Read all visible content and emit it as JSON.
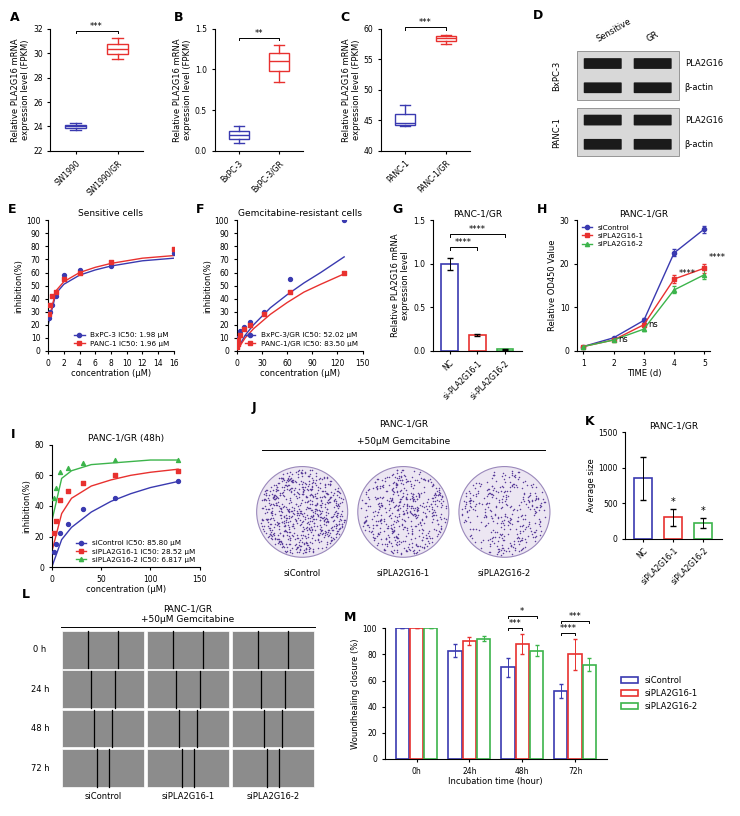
{
  "chart_data": [
    {
      "panel": "A",
      "type": "box",
      "y_label": "Relative PLA2G16 mRNA\nexpression level (FPKM)",
      "categories": [
        "SW1990",
        "SW1990/GR"
      ],
      "colors": [
        "#3a3ab0",
        "#e8312f"
      ],
      "values": [
        [
          23.7,
          24.0,
          24.3
        ],
        [
          29.5,
          30.3,
          31.2
        ]
      ],
      "ylim": [
        22,
        32
      ],
      "yticks": [
        22,
        24,
        26,
        28,
        30,
        32
      ],
      "significance": [
        {
          "text": "***",
          "between": [
            "SW1990",
            "SW1990/GR"
          ]
        }
      ]
    },
    {
      "panel": "B",
      "type": "box",
      "y_label": "Relative PLA2G16 mRNA\nexpression level (FPKM)",
      "categories": [
        "BxPC-3",
        "BxPC-3/GR"
      ],
      "colors": [
        "#3a3ab0",
        "#e8312f"
      ],
      "values": [
        [
          0.1,
          0.2,
          0.3
        ],
        [
          0.85,
          1.1,
          1.3
        ]
      ],
      "ylim": [
        0,
        1.5
      ],
      "yticks": [
        {
          "value": 0,
          "label": "0.0"
        },
        0.5,
        {
          "value": 1,
          "label": "1.0"
        },
        1.5
      ],
      "significance": [
        {
          "text": "**",
          "between": [
            "BxPC-3",
            "BxPC-3/GR"
          ]
        }
      ]
    },
    {
      "panel": "C",
      "type": "box",
      "y_label": "Relative PLA2G16 mRNA\nexpression level (FPKM)",
      "categories": [
        "PANC-1",
        "PANC-1/GR"
      ],
      "colors": [
        "#3a3ab0",
        "#e8312f"
      ],
      "values": [
        [
          44,
          44.5,
          47.5
        ],
        [
          57.5,
          58.5,
          59
        ]
      ],
      "ylim": [
        40,
        60
      ],
      "yticks": [
        40,
        45,
        50,
        55,
        60
      ],
      "significance": [
        {
          "text": "***",
          "between": [
            "PANC-1",
            "PANC-1/GR"
          ]
        }
      ]
    },
    {
      "panel": "E",
      "type": "curve",
      "title": "Sensitive cells",
      "x_label": "concentration (μM)",
      "y_label": "inhibition(%)",
      "xlim": [
        0,
        16
      ],
      "xticks": [
        0,
        2,
        4,
        6,
        8,
        10,
        12,
        14,
        16
      ],
      "ylim": [
        0,
        100
      ],
      "yticks": [
        0,
        10,
        20,
        30,
        40,
        50,
        60,
        70,
        80,
        90,
        100
      ],
      "legend": "lower right",
      "series": [
        {
          "name": "BxPC-3 IC50: 1.98 μM",
          "color": "#3a3ab0",
          "marker": "o",
          "x": [
            0.125,
            0.25,
            0.5,
            1,
            2,
            4,
            8,
            16
          ],
          "values": [
            25,
            30,
            35,
            42,
            58,
            62,
            65,
            75
          ],
          "fit_x": [
            0,
            1,
            2,
            4,
            6,
            8,
            10,
            12,
            14,
            16
          ],
          "fit_values": [
            20,
            44,
            51,
            58,
            62,
            65,
            67,
            69,
            70,
            71
          ]
        },
        {
          "name": "PANC-1 IC50: 1.96 μM",
          "color": "#e8312f",
          "marker": "s",
          "x": [
            0.125,
            0.25,
            0.5,
            1,
            2,
            4,
            8,
            16
          ],
          "values": [
            28,
            35,
            42,
            45,
            55,
            60,
            68,
            78
          ],
          "fit_x": [
            0,
            1,
            2,
            4,
            6,
            8,
            10,
            12,
            14,
            16
          ],
          "fit_values": [
            22,
            46,
            53,
            60,
            64,
            67,
            69,
            71,
            72,
            73
          ]
        }
      ]
    },
    {
      "panel": "F",
      "type": "curve",
      "title": "Gemcitabine-resistant cells",
      "x_label": "concentration (μM)",
      "y_label": "inhibition(%)",
      "xlim": [
        0,
        150
      ],
      "xticks": [
        0,
        30,
        60,
        90,
        120,
        150
      ],
      "ylim": [
        0,
        100
      ],
      "yticks": [
        0,
        10,
        20,
        30,
        40,
        50,
        60,
        70,
        80,
        90,
        100
      ],
      "legend": "lower right",
      "series": [
        {
          "name": "BxPC-3/GR IC50: 52.02 μM",
          "color": "#3a3ab0",
          "marker": "o",
          "x": [
            0.5,
            1,
            2,
            4,
            8,
            16,
            32,
            64,
            128
          ],
          "values": [
            5,
            8,
            10,
            15,
            18,
            22,
            30,
            55,
            100
          ],
          "fit_x": [
            0,
            10,
            20,
            40,
            60,
            80,
            100,
            128
          ],
          "fit_values": [
            0,
            12,
            20,
            33,
            43,
            52,
            60,
            72
          ]
        },
        {
          "name": "PANC-1/GR IC50: 83.50 μM",
          "color": "#e8312f",
          "marker": "s",
          "x": [
            0.5,
            1,
            2,
            4,
            8,
            16,
            32,
            64,
            128
          ],
          "values": [
            3,
            5,
            8,
            12,
            17,
            20,
            28,
            45,
            60
          ],
          "fit_x": [
            0,
            10,
            20,
            40,
            60,
            80,
            100,
            128
          ],
          "fit_values": [
            0,
            10,
            17,
            28,
            37,
            45,
            51,
            59
          ]
        }
      ]
    },
    {
      "panel": "G",
      "type": "bar",
      "title": "PANC-1/GR",
      "y_label": "Relative PLA2G16 mRNA\nexpression level",
      "categories": [
        "NC",
        "si-PLA2G16-1",
        "si-PLA2G16-2"
      ],
      "values": [
        1.0,
        0.18,
        0.02
      ],
      "errors": [
        0.07,
        0.01,
        0.005
      ],
      "colors": [
        "#3a3ab0",
        "#e8312f",
        "#3cb44b"
      ],
      "ylim": [
        0,
        1.5
      ],
      "yticks": [
        {
          "value": 0,
          "label": "0.0"
        },
        0.5,
        {
          "value": 1,
          "label": "1.0"
        },
        1.5
      ],
      "significance": [
        {
          "text": "****",
          "between": [
            "NC",
            "si-PLA2G16-1"
          ]
        },
        {
          "text": "****",
          "between": [
            "NC",
            "si-PLA2G16-2"
          ]
        }
      ]
    },
    {
      "panel": "H",
      "type": "line",
      "title": "PANC-1/GR",
      "x_label": "TIME (d)",
      "y_label": "Relative OD450 Value",
      "x": [
        1,
        2,
        3,
        4,
        5
      ],
      "xlim": [
        0.8,
        5.2
      ],
      "xticks": [
        1,
        2,
        3,
        4,
        5
      ],
      "ylim": [
        0,
        30
      ],
      "yticks": [
        0,
        10,
        20,
        30
      ],
      "legend": "upper left",
      "series": [
        {
          "name": "siControl",
          "color": "#3a3ab0",
          "marker": "o",
          "values": [
            1,
            3,
            7,
            22.5,
            28
          ],
          "errors": [
            0.1,
            0.3,
            0.5,
            0.8,
            0.8
          ]
        },
        {
          "name": "siPLA2G16-1",
          "color": "#e8312f",
          "marker": "s",
          "values": [
            1,
            2.5,
            6,
            16.5,
            19
          ],
          "errors": [
            0.1,
            0.2,
            0.4,
            1,
            1
          ]
        },
        {
          "name": "siPLA2G16-2",
          "color": "#3cb44b",
          "marker": "^",
          "values": [
            1,
            2.5,
            5,
            14,
            17.5
          ],
          "errors": [
            0.1,
            0.2,
            0.4,
            0.8,
            1
          ]
        }
      ],
      "annotations": [
        {
          "text": "ns",
          "x": 2
        },
        {
          "text": "ns",
          "x": 3
        },
        {
          "text": "****",
          "x": 4
        },
        {
          "text": "****",
          "x": 5
        }
      ]
    },
    {
      "panel": "I",
      "type": "curve",
      "title": "PANC-1/GR (48h)",
      "x_label": "concentration (μM)",
      "y_label": "inhibition(%)",
      "xlim": [
        0,
        150
      ],
      "xticks": [
        0,
        50,
        100,
        150
      ],
      "ylim": [
        0,
        80
      ],
      "yticks": [
        0,
        20,
        40,
        60,
        80
      ],
      "legend": "lower right",
      "series": [
        {
          "name": "siControl IC50: 85.80 μM",
          "color": "#3a3ab0",
          "marker": "o",
          "x": [
            2,
            4,
            8,
            16,
            32,
            64,
            128
          ],
          "values": [
            10,
            15,
            22,
            28,
            38,
            45,
            56
          ],
          "fit_x": [
            0,
            10,
            20,
            40,
            60,
            80,
            100,
            128
          ],
          "fit_values": [
            0,
            18,
            26,
            36,
            43,
            48,
            52,
            56
          ]
        },
        {
          "name": "siPLA2G16-1 IC50: 28.52 μM",
          "color": "#e8312f",
          "marker": "s",
          "x": [
            2,
            4,
            8,
            16,
            32,
            64,
            128
          ],
          "values": [
            22,
            30,
            44,
            50,
            55,
            60,
            63
          ],
          "fit_x": [
            0,
            10,
            20,
            40,
            60,
            80,
            100,
            128
          ],
          "fit_values": [
            10,
            35,
            45,
            53,
            57,
            60,
            62,
            64
          ]
        },
        {
          "name": "siPLA2G16-2 IC50: 6.817 μM",
          "color": "#3cb44b",
          "marker": "^",
          "x": [
            2,
            4,
            8,
            16,
            32,
            64,
            128
          ],
          "values": [
            45,
            52,
            62,
            65,
            68,
            70,
            70
          ],
          "fit_x": [
            0,
            10,
            20,
            40,
            60,
            80,
            100,
            128
          ],
          "fit_values": [
            30,
            58,
            63,
            67,
            68,
            69,
            70,
            70
          ]
        }
      ]
    },
    {
      "panel": "K",
      "type": "bar",
      "title": "PANC-1/GR",
      "y_label": "Average size",
      "categories": [
        "NC",
        "siPLA2G16-1",
        "siPLA2G16-2"
      ],
      "values": [
        850,
        300,
        220
      ],
      "errors": [
        300,
        120,
        70
      ],
      "colors": [
        "#3a3ab0",
        "#e8312f",
        "#3cb44b"
      ],
      "ylim": [
        0,
        1500
      ],
      "yticks": [
        0,
        500,
        1000,
        1500
      ],
      "significance": [
        {
          "text": "*",
          "category": "siPLA2G16-1"
        },
        {
          "text": "*",
          "category": "siPLA2G16-2"
        }
      ]
    },
    {
      "panel": "M",
      "type": "grouped_bar",
      "x_label": "Incubation time (hour)",
      "y_label": "Woundhealing closure (%)",
      "categories": [
        "0h",
        "24h",
        "48h",
        "72h"
      ],
      "ylim": [
        0,
        100
      ],
      "yticks": [
        0,
        20,
        40,
        60,
        80,
        100
      ],
      "legend": "right",
      "series": [
        {
          "name": "siControl",
          "color": "#3a3ab0",
          "values": [
            100,
            83,
            70,
            52
          ],
          "errors": [
            0,
            5,
            7,
            5
          ]
        },
        {
          "name": "siPLA2G16-1",
          "color": "#e8312f",
          "values": [
            100,
            90,
            88,
            80
          ],
          "errors": [
            0,
            3,
            8,
            12
          ]
        },
        {
          "name": "siPLA2G16-2",
          "color": "#3cb44b",
          "values": [
            100,
            92,
            83,
            72
          ],
          "errors": [
            0,
            2,
            4,
            5
          ]
        }
      ],
      "significance": [
        {
          "text": "***",
          "category": "48h",
          "between": [
            "siControl",
            "siPLA2G16-1"
          ]
        },
        {
          "text": "*",
          "category": "48h",
          "between": [
            "siControl",
            "siPLA2G16-2"
          ]
        },
        {
          "text": "****",
          "category": "72h",
          "between": [
            "siControl",
            "siPLA2G16-1"
          ]
        },
        {
          "text": "***",
          "category": "72h",
          "between": [
            "siControl",
            "siPLA2G16-2"
          ]
        }
      ]
    }
  ],
  "images": [
    {
      "panel": "D",
      "type": "western_blot",
      "columns": [
        "Sensitive",
        "GR"
      ],
      "groups": [
        {
          "name": "BxPC-3",
          "bands": [
            "PLA2G16",
            "β-actin"
          ]
        },
        {
          "name": "PANC-1",
          "bands": [
            "PLA2G16",
            "β-actin"
          ]
        }
      ]
    },
    {
      "panel": "J",
      "type": "colony_images",
      "title": "PANC-1/GR",
      "subtitle": "+50μM Gemcitabine",
      "columns": [
        "siControl",
        "siPLA2G16-1",
        "siPLA2G16-2"
      ]
    },
    {
      "panel": "L",
      "type": "wound_images",
      "title": "PANC-1/GR",
      "subtitle": "+50μM Gemcitabine",
      "rows": [
        "0 h",
        "24 h",
        "48 h",
        "72 h"
      ],
      "columns": [
        "siControl",
        "siPLA2G16-1",
        "siPLA2G16-2"
      ]
    }
  ]
}
